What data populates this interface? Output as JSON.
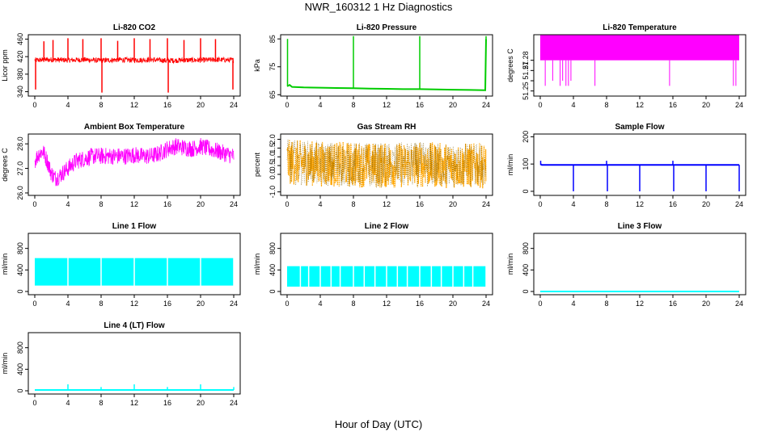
{
  "figure": {
    "title": "NWR_160312  1 Hz Diagnostics",
    "xlabel": "Hour of Day (UTC)"
  },
  "chart_data": [
    {
      "type": "line",
      "title": "Li-820 CO2",
      "xlabel": "",
      "ylabel": "Licor ppm",
      "xlim": [
        0,
        24
      ],
      "ylim": [
        330,
        470
      ],
      "xticks": [
        0,
        4,
        8,
        12,
        16,
        20,
        24
      ],
      "yticks": [
        340,
        380,
        420,
        460
      ],
      "color": "#ff0000",
      "style": "noisy_band",
      "series": [
        {
          "x": [
            0,
            2,
            4,
            6,
            8,
            10,
            12,
            14,
            16,
            18,
            20,
            22,
            24
          ],
          "y": [
            412,
            413,
            412,
            413,
            411,
            413,
            412,
            413,
            411,
            412,
            412,
            413,
            412
          ]
        }
      ],
      "band": 6,
      "spikes": [
        {
          "x": 0.1,
          "y": 345
        },
        {
          "x": 1.1,
          "y": 455
        },
        {
          "x": 2.2,
          "y": 458
        },
        {
          "x": 4.0,
          "y": 462
        },
        {
          "x": 5.8,
          "y": 460
        },
        {
          "x": 8.0,
          "y": 462
        },
        {
          "x": 8.1,
          "y": 338
        },
        {
          "x": 10.0,
          "y": 456
        },
        {
          "x": 12.0,
          "y": 462
        },
        {
          "x": 13.9,
          "y": 460
        },
        {
          "x": 16.0,
          "y": 462
        },
        {
          "x": 16.1,
          "y": 338
        },
        {
          "x": 18.0,
          "y": 458
        },
        {
          "x": 20.0,
          "y": 462
        },
        {
          "x": 21.8,
          "y": 460
        },
        {
          "x": 23.9,
          "y": 345
        }
      ]
    },
    {
      "type": "line",
      "title": "Li-820 Pressure",
      "xlabel": "",
      "ylabel": "kPa",
      "xlim": [
        0,
        24
      ],
      "ylim": [
        64.5,
        86.5
      ],
      "xticks": [
        0,
        4,
        8,
        12,
        16,
        20,
        24
      ],
      "yticks": [
        65,
        75,
        85
      ],
      "color": "#00cc00",
      "style": "line",
      "series": [
        {
          "x": [
            0,
            0.3,
            0.6,
            2,
            4,
            6,
            8,
            10,
            12,
            14,
            16,
            18,
            20,
            22,
            23.9,
            24
          ],
          "y": [
            68,
            68.5,
            67.8,
            67.6,
            67.5,
            67.4,
            67.3,
            67.2,
            67.1,
            67.0,
            67.0,
            66.9,
            66.8,
            66.7,
            66.6,
            85
          ]
        }
      ],
      "spikes": [
        {
          "x": 0.05,
          "y": 85
        },
        {
          "x": 8.0,
          "y": 86
        },
        {
          "x": 16.0,
          "y": 86
        },
        {
          "x": 24.0,
          "y": 86
        }
      ]
    },
    {
      "type": "line",
      "title": "Li-820 Temperature",
      "xlabel": "",
      "ylabel": "degrees C",
      "xlim": [
        0,
        24
      ],
      "ylim": [
        51.245,
        51.305
      ],
      "xticks": [
        0,
        4,
        8,
        12,
        16,
        20,
        24
      ],
      "yticks": [
        51.25,
        51.26,
        51.27,
        51.28
      ],
      "yticklabels": [
        "51.25",
        "",
        "51.27",
        "51.28"
      ],
      "color": "#ff00ff",
      "style": "block",
      "block": {
        "low": 51.28,
        "high": 51.306
      },
      "drops": [
        {
          "x": 0.6,
          "y": 51.255
        },
        {
          "x": 1.5,
          "y": 51.26
        },
        {
          "x": 2.4,
          "y": 51.255
        },
        {
          "x": 2.7,
          "y": 51.26
        },
        {
          "x": 3.1,
          "y": 51.255
        },
        {
          "x": 3.4,
          "y": 51.255
        },
        {
          "x": 3.7,
          "y": 51.26
        },
        {
          "x": 6.6,
          "y": 51.255
        },
        {
          "x": 15.6,
          "y": 51.255
        },
        {
          "x": 23.3,
          "y": 51.255
        },
        {
          "x": 23.6,
          "y": 51.255
        }
      ]
    },
    {
      "type": "line",
      "title": "Ambient Box Temperature",
      "xlabel": "",
      "ylabel": "degrees C",
      "xlim": [
        0,
        24
      ],
      "ylim": [
        25.9,
        28.4
      ],
      "xticks": [
        0,
        4,
        8,
        12,
        16,
        20,
        24
      ],
      "yticks": [
        26.0,
        27.0,
        28.0
      ],
      "yticklabels": [
        "26.0",
        "27.0",
        "28.0"
      ],
      "color": "#ff00ff",
      "style": "noisy_band",
      "series": [
        {
          "x": [
            0,
            0.5,
            1,
            1.5,
            2,
            2.5,
            3,
            4,
            5,
            6,
            7,
            8,
            9,
            10,
            11,
            12,
            13,
            14,
            15,
            16,
            17,
            18,
            19,
            20,
            21,
            22,
            23,
            24
          ],
          "y": [
            27.3,
            27.6,
            27.7,
            27.3,
            26.8,
            26.6,
            26.7,
            27.0,
            27.3,
            27.4,
            27.5,
            27.5,
            27.5,
            27.5,
            27.5,
            27.55,
            27.5,
            27.5,
            27.6,
            27.8,
            27.9,
            27.85,
            27.8,
            27.9,
            27.8,
            27.7,
            27.6,
            27.5
          ]
        }
      ],
      "band": 0.35
    },
    {
      "type": "scatter",
      "title": "Gas Stream RH",
      "xlabel": "",
      "ylabel": "percent",
      "xlim": [
        0,
        24
      ],
      "ylim": [
        -1.2,
        2.3
      ],
      "xticks": [
        0,
        4,
        8,
        12,
        16,
        20,
        24
      ],
      "yticks": [
        -1.0,
        0.0,
        0.5,
        1.0,
        1.5,
        2.0
      ],
      "yticklabels": [
        "-1.0",
        "0.0",
        "0.5",
        "1.0",
        "1.5",
        "2.0"
      ],
      "color": "#ffa500",
      "style": "noisy_band",
      "series": [
        {
          "x": [
            0,
            4,
            8,
            12,
            16,
            20,
            24
          ],
          "y": [
            0.7,
            0.6,
            0.55,
            0.5,
            0.55,
            0.5,
            0.5
          ]
        }
      ],
      "band": 1.3
    },
    {
      "type": "line",
      "title": "Sample Flow",
      "xlabel": "",
      "ylabel": "ml/min",
      "xlim": [
        0,
        24
      ],
      "ylim": [
        -15,
        210
      ],
      "xticks": [
        0,
        4,
        8,
        12,
        16,
        20,
        24
      ],
      "yticks": [
        0,
        100,
        200
      ],
      "color": "#0000ff",
      "style": "line",
      "series": [
        {
          "x": [
            0,
            0.2,
            24
          ],
          "y": [
            100,
            97,
            97
          ]
        }
      ],
      "spikes": [
        {
          "x": 0.05,
          "y": 112
        },
        {
          "x": 4.0,
          "y": 0
        },
        {
          "x": 8.0,
          "y": 112
        },
        {
          "x": 8.1,
          "y": 0
        },
        {
          "x": 12.0,
          "y": 0
        },
        {
          "x": 16.0,
          "y": 112
        },
        {
          "x": 16.1,
          "y": 0
        },
        {
          "x": 20.0,
          "y": 0
        },
        {
          "x": 24.0,
          "y": 0
        }
      ]
    },
    {
      "type": "area",
      "title": "Line 1 Flow",
      "xlabel": "",
      "ylabel": "ml/min",
      "xlim": [
        0,
        24
      ],
      "ylim": [
        -60,
        1080
      ],
      "xticks": [
        0,
        4,
        8,
        12,
        16,
        20,
        24
      ],
      "yticks": [
        0,
        400,
        800
      ],
      "color": "#00ffff",
      "style": "band_fill",
      "band_fill": {
        "low": 110,
        "high": 620
      },
      "gaps": [
        4.0,
        8.0,
        12.0,
        16.0,
        20.0,
        24.0
      ]
    },
    {
      "type": "area",
      "title": "Line 2 Flow",
      "xlabel": "",
      "ylabel": "ml/min",
      "xlim": [
        0,
        24
      ],
      "ylim": [
        -60,
        1080
      ],
      "xticks": [
        0,
        4,
        8,
        12,
        16,
        20,
        24
      ],
      "yticks": [
        0,
        400,
        800
      ],
      "color": "#00ffff",
      "style": "band_fill",
      "band_fill": {
        "low": 90,
        "high": 470
      },
      "gaps": [
        1.6,
        2.6,
        4.0,
        5.3,
        6.4,
        8.0,
        9.3,
        10.6,
        12.0,
        13.3,
        14.5,
        16.0,
        17.4,
        18.6,
        20.0,
        21.3,
        22.4,
        24.0
      ]
    },
    {
      "type": "line",
      "title": "Line 3 Flow",
      "xlabel": "",
      "ylabel": "ml/min",
      "xlim": [
        0,
        24
      ],
      "ylim": [
        -60,
        1080
      ],
      "xticks": [
        0,
        4,
        8,
        12,
        16,
        20,
        24
      ],
      "yticks": [
        0,
        400,
        800
      ],
      "color": "#00ffff",
      "style": "line",
      "series": [
        {
          "x": [
            0,
            24
          ],
          "y": [
            0,
            0
          ]
        }
      ]
    },
    {
      "type": "line",
      "title": "Line 4 (LT) Flow",
      "xlabel": "",
      "ylabel": "ml/min",
      "xlim": [
        0,
        24
      ],
      "ylim": [
        -60,
        1080
      ],
      "xticks": [
        0,
        4,
        8,
        12,
        16,
        20,
        24
      ],
      "yticks": [
        0,
        400,
        800
      ],
      "color": "#00ffff",
      "style": "line",
      "series": [
        {
          "x": [
            0,
            24
          ],
          "y": [
            15,
            15
          ]
        }
      ],
      "spikes": [
        {
          "x": 4.0,
          "y": 120
        },
        {
          "x": 8.0,
          "y": 70
        },
        {
          "x": 12.0,
          "y": 120
        },
        {
          "x": 16.0,
          "y": 70
        },
        {
          "x": 20.0,
          "y": 120
        },
        {
          "x": 24.0,
          "y": 70
        }
      ]
    }
  ]
}
